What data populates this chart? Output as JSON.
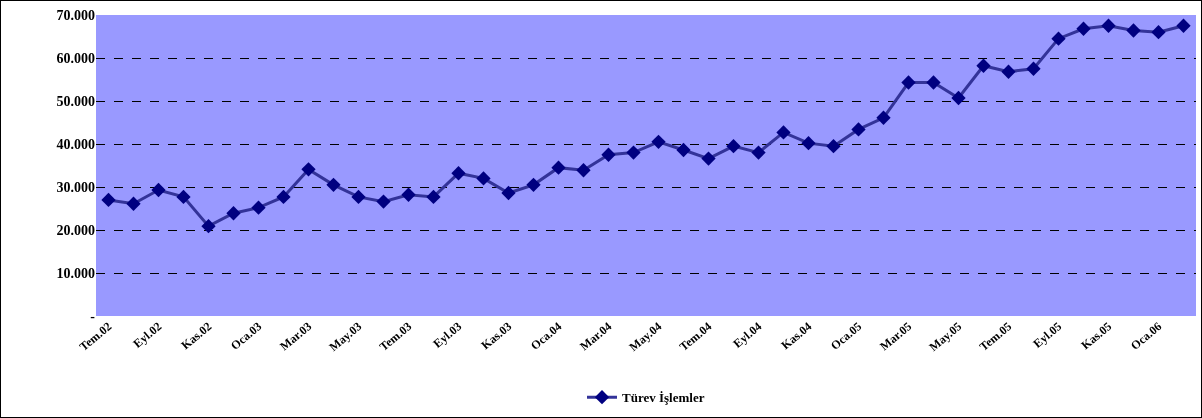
{
  "chart_data": {
    "type": "line",
    "categories": [
      "Tem.02",
      null,
      "Eyl.02",
      null,
      "Kas.02",
      null,
      "Oca.03",
      null,
      "Mar.03",
      null,
      "May.03",
      null,
      "Tem.03",
      null,
      "Eyl.03",
      null,
      "Kas.03",
      null,
      "Oca.04",
      null,
      "Mar.04",
      null,
      "May.04",
      null,
      "Tem.04",
      null,
      "Eyl.04",
      null,
      "Kas.04",
      null,
      "Oca.05",
      null,
      "Mar.05",
      null,
      "May.05",
      null,
      "Tem.05",
      null,
      "Eyl.05",
      null,
      "Kas.05",
      null,
      "Oca.06",
      null
    ],
    "series": [
      {
        "name": "Türev İşlemler",
        "color": "#333399",
        "values": [
          27000,
          26100,
          29300,
          27700,
          20900,
          23900,
          25200,
          27700,
          34100,
          30500,
          27700,
          26600,
          28200,
          27700,
          33200,
          32000,
          28600,
          30500,
          34500,
          33900,
          37500,
          38000,
          40500,
          38600,
          36600,
          39500,
          38000,
          42700,
          40200,
          39500,
          43400,
          46100,
          54300,
          54300,
          50700,
          58200,
          56800,
          57500,
          64500,
          66800,
          67500,
          66400,
          66000,
          67500
        ]
      }
    ],
    "ylim": [
      0,
      70000
    ],
    "yticks": [
      {
        "value": 0,
        "label": "-"
      },
      {
        "value": 10000,
        "label": "10.000"
      },
      {
        "value": 20000,
        "label": "20.000"
      },
      {
        "value": 30000,
        "label": "30.000"
      },
      {
        "value": 40000,
        "label": "40.000"
      },
      {
        "value": 50000,
        "label": "50.000"
      },
      {
        "value": 60000,
        "label": "60.000"
      },
      {
        "value": 70000,
        "label": "70.000"
      }
    ],
    "grid": "y",
    "legend": "bottom",
    "marker": "diamond",
    "line_style": "solid"
  }
}
